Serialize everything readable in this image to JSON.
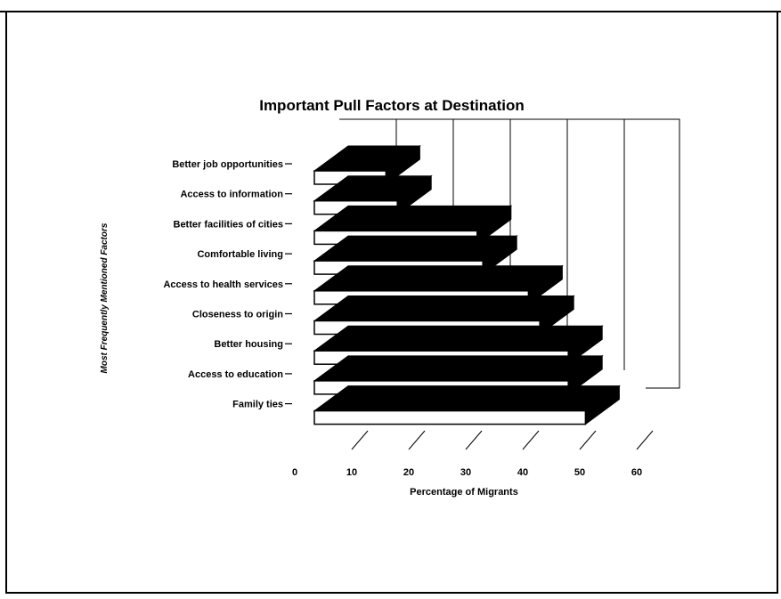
{
  "chart_data": {
    "type": "bar",
    "orientation": "horizontal",
    "style": "3d",
    "title": "Important Pull Factors at Destination",
    "xlabel": "Percentage of Migrants",
    "ylabel": "Most Frequently Mentioned Factors",
    "categories": [
      "Better job opportunities",
      "Access to information",
      "Better facilities of cities",
      "Comfortable living",
      "Access to health services",
      "Closeness to origin",
      "Better housing",
      "Access to education",
      "Family ties"
    ],
    "values": [
      16,
      18,
      32,
      33,
      41,
      43,
      48,
      48,
      51
    ],
    "xlim": [
      0,
      60
    ],
    "xticks": [
      "0",
      "10",
      "20",
      "30",
      "40",
      "50",
      "60"
    ],
    "grid": true,
    "legend": "none",
    "colors": {
      "bar_face": "#ffffff",
      "bar_side": "#000000",
      "outline": "#000000"
    }
  }
}
